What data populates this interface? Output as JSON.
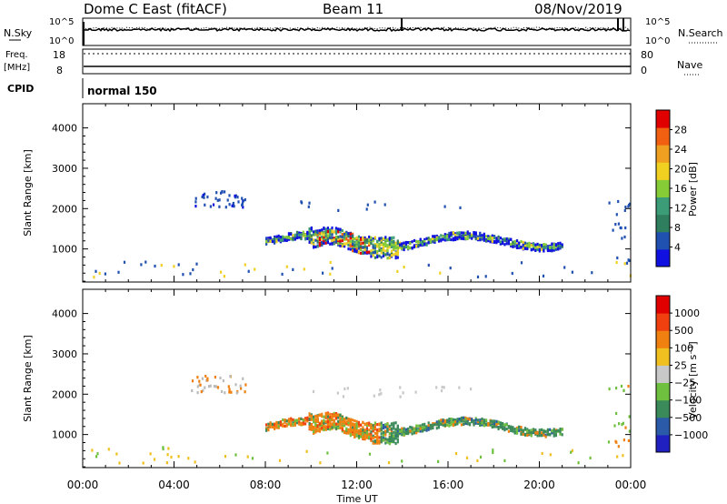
{
  "header": {
    "station": "Dome C East (fitACF)",
    "beam": "Beam 11",
    "date": "08/Nov/2019"
  },
  "panels": {
    "nsky": {
      "label": "N.Sky",
      "tick_top": "10^5",
      "tick_bottom": "10^0",
      "right_label": "N.Search",
      "right_tick_top": "10^5",
      "right_tick_bottom": "10^0"
    },
    "freq": {
      "label_line1": "Freq.",
      "label_line2": "[MHz]",
      "tick_top": "18",
      "tick_bottom": "8",
      "right_label": "Nave",
      "right_tick_top": "80",
      "right_tick_bottom": "0"
    },
    "cpid": {
      "label": "CPID",
      "value": "normal 150"
    }
  },
  "chart_data": [
    {
      "type": "heatmap",
      "title": "",
      "xlabel": "Time UT",
      "ylabel": "Slant Range [km]",
      "xlim": [
        "00:00",
        "24:00"
      ],
      "ylim": [
        180,
        4600
      ],
      "x_tick_labels": [
        "00:00",
        "04:00",
        "08:00",
        "12:00",
        "16:00",
        "20:00",
        "00:00"
      ],
      "y_tick_labels": [
        "1000",
        "2000",
        "3000",
        "4000"
      ],
      "colorbar": {
        "label": "Power [dB]",
        "min": 0,
        "max": 32,
        "tick_labels": [
          "4",
          "8",
          "12",
          "16",
          "20",
          "24",
          "28"
        ]
      },
      "scatter_regions": [
        {
          "start": "08:00",
          "end": "21:00",
          "range_low_km": 800,
          "range_high_km": 1600,
          "dominant": "green/yellow with red core 10:00-12:00"
        },
        {
          "start": "04:45",
          "end": "07:00",
          "range_low_km": 2000,
          "range_high_km": 2400,
          "dominant": "blue"
        }
      ]
    },
    {
      "type": "heatmap",
      "title": "",
      "xlabel": "Time UT",
      "ylabel": "Slant Range [km]",
      "xlim": [
        "00:00",
        "24:00"
      ],
      "ylim": [
        180,
        4600
      ],
      "x_tick_labels": [
        "00:00",
        "04:00",
        "08:00",
        "12:00",
        "16:00",
        "20:00",
        "00:00"
      ],
      "y_tick_labels": [
        "1000",
        "2000",
        "3000",
        "4000"
      ],
      "colorbar": {
        "label": "Velocity [m s⁻¹]",
        "tick_labels": [
          "1000",
          "500",
          "100",
          "25",
          "−25",
          "−100",
          "−500",
          "−1000"
        ]
      },
      "scatter_regions": [
        {
          "start": "08:00",
          "end": "21:00",
          "range_low_km": 800,
          "range_high_km": 1600,
          "dominant": "orange (negative) 09:00-13:00, green (positive) later"
        }
      ]
    }
  ],
  "colors": {
    "power": [
      "#1010e0",
      "#2050b0",
      "#2f7f5f",
      "#3c9c78",
      "#86cc36",
      "#f0d020",
      "#f0a020",
      "#f06010",
      "#e00000"
    ],
    "velocity": [
      "#2020c0",
      "#2a5aa8",
      "#3a8a5a",
      "#70c040",
      "#c8c8c8",
      "#f0c020",
      "#f08010",
      "#f04010",
      "#e00000"
    ]
  }
}
